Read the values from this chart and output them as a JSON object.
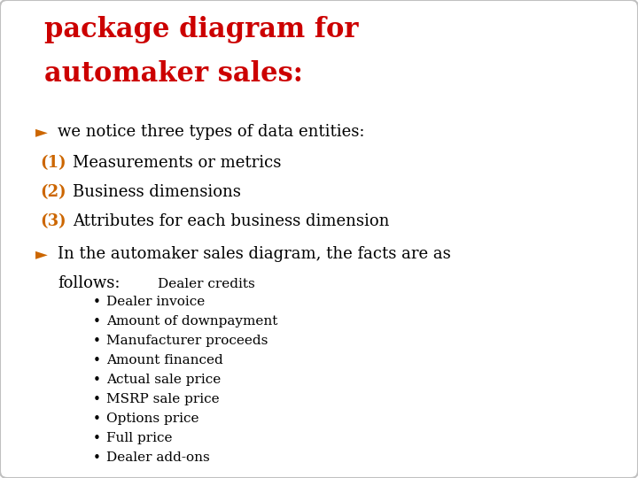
{
  "bg_color": "#ffffff",
  "border_color": "#c0c0c0",
  "title_line1": "package diagram for",
  "title_line2": "automaker sales:",
  "title_color": "#cc0000",
  "title_fontsize": 22,
  "arrow_color": "#cc6600",
  "item_color": "#000000",
  "item_fontsize": 13,
  "prefix_color": "#cc6600",
  "items": [
    {
      "prefix": "(1)",
      "text": "Measurements or metrics"
    },
    {
      "prefix": "(2)",
      "text": "Business dimensions"
    },
    {
      "prefix": "(3)",
      "text": "Attributes for each business dimension"
    }
  ],
  "bullet_items": [
    "Dealer invoice",
    "Amount of downpayment",
    "Manufacturer proceeds",
    "Amount financed",
    "Actual sale price",
    "MSRP sale price",
    "Options price",
    "Full price",
    "Dealer add-ons"
  ],
  "overlap_text": "Dealer credits",
  "bullet_color": "#000000",
  "bullet_fontsize": 11,
  "bullet_char": "•"
}
